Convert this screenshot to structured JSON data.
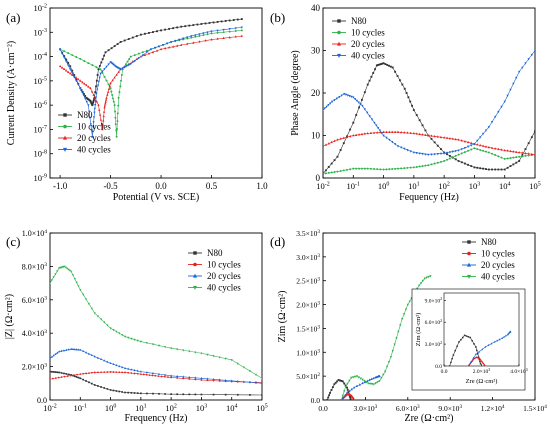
{
  "chart_data": [
    {
      "panel_label": "(a)",
      "type": "line",
      "xlabel": "Potential (V vs. SCE)",
      "ylabel": "Current Density (A·cm⁻²)",
      "xlim": [
        -1.1,
        1.0
      ],
      "ylim_exp": [
        -9,
        -2
      ],
      "yscale": "log",
      "xticks": [
        "-1.0",
        "-0.5",
        "0.0",
        "0.5",
        "1.0"
      ],
      "yticks": [
        {
          "base": "10",
          "exp": "-2"
        },
        {
          "base": "10",
          "exp": "-3"
        },
        {
          "base": "10",
          "exp": "-4"
        },
        {
          "base": "10",
          "exp": "-5"
        },
        {
          "base": "10",
          "exp": "-6"
        },
        {
          "base": "10",
          "exp": "-7"
        },
        {
          "base": "10",
          "exp": "-8"
        },
        {
          "base": "10",
          "exp": "-9"
        }
      ],
      "legend_position": "bottom-left",
      "series": [
        {
          "name": "N80",
          "color": "#333333",
          "x": [
            -1.0,
            -0.9,
            -0.8,
            -0.74,
            -0.7,
            -0.68,
            -0.66,
            -0.62,
            -0.55,
            -0.4,
            -0.2,
            0.0,
            0.2,
            0.4,
            0.6,
            0.8
          ],
          "y": [
            0.0002,
            4e-05,
            5e-06,
            2e-06,
            1.5e-06,
            1e-06,
            2e-06,
            3e-05,
            0.00015,
            0.0004,
            0.0008,
            0.0012,
            0.0017,
            0.0022,
            0.0028,
            0.0035
          ]
        },
        {
          "name": "10 cycles",
          "color": "#2db24a",
          "x": [
            -1.0,
            -0.8,
            -0.6,
            -0.5,
            -0.46,
            -0.44,
            -0.42,
            -0.38,
            -0.3,
            -0.1,
            0.1,
            0.3,
            0.5,
            0.8
          ],
          "y": [
            0.0002,
            8e-05,
            3e-05,
            5e-06,
            1e-06,
            5e-08,
            2e-06,
            3e-05,
            0.0001,
            0.0002,
            0.0004,
            0.0006,
            0.0009,
            0.0012
          ]
        },
        {
          "name": "20 cycles",
          "color": "#e8201c",
          "x": [
            -1.0,
            -0.9,
            -0.8,
            -0.7,
            -0.62,
            -0.58,
            -0.56,
            -0.54,
            -0.5,
            -0.4,
            -0.2,
            0.0,
            0.2,
            0.5,
            0.8
          ],
          "y": [
            4e-05,
            2e-05,
            1e-05,
            5e-06,
            1e-06,
            1e-07,
            8e-07,
            2e-06,
            8e-06,
            3e-05,
            0.0001,
            0.0002,
            0.0003,
            0.0005,
            0.0007
          ]
        },
        {
          "name": "40 cycles",
          "color": "#1a64d9",
          "x": [
            -1.0,
            -0.9,
            -0.8,
            -0.72,
            -0.68,
            -0.66,
            -0.64,
            -0.6,
            -0.5,
            -0.45,
            -0.4,
            -0.3,
            -0.1,
            0.1,
            0.3,
            0.5,
            0.8
          ],
          "y": [
            0.0002,
            3e-05,
            5e-06,
            1e-06,
            5e-08,
            5e-07,
            3e-06,
            2e-05,
            6e-05,
            4e-05,
            3e-05,
            5e-05,
            0.0002,
            0.0004,
            0.0007,
            0.0011,
            0.0016
          ]
        }
      ]
    },
    {
      "panel_label": "(b)",
      "type": "line",
      "xlabel": "Fequency (Hz)",
      "ylabel": "Phase Angle (degree)",
      "xscale": "log",
      "xlim_exp": [
        -2,
        5
      ],
      "ylim": [
        0,
        40
      ],
      "xticks": [
        {
          "base": "10",
          "exp": "-2"
        },
        {
          "base": "10",
          "exp": "-1"
        },
        {
          "base": "10",
          "exp": "0"
        },
        {
          "base": "10",
          "exp": "1"
        },
        {
          "base": "10",
          "exp": "2"
        },
        {
          "base": "10",
          "exp": "3"
        },
        {
          "base": "10",
          "exp": "4"
        },
        {
          "base": "10",
          "exp": "5"
        }
      ],
      "yticks": [
        "0",
        "10",
        "20",
        "30",
        "40"
      ],
      "legend_position": "top-left",
      "series": [
        {
          "name": "N80",
          "color": "#333333",
          "x": [
            0.01,
            0.03,
            0.1,
            0.3,
            0.6,
            1,
            2,
            5,
            10,
            30,
            100,
            300,
            1000,
            3000,
            10000,
            30000,
            100000
          ],
          "y": [
            1,
            5,
            13,
            22,
            26.5,
            27,
            26,
            21,
            16,
            10,
            6,
            4,
            2.5,
            2,
            2,
            4,
            11
          ]
        },
        {
          "name": "10 cycles",
          "color": "#2db24a",
          "x": [
            0.01,
            0.03,
            0.1,
            0.3,
            1,
            3,
            10,
            30,
            100,
            300,
            1000,
            3000,
            10000,
            30000,
            100000
          ],
          "y": [
            1,
            1.5,
            2.2,
            2.2,
            2,
            2.2,
            2.5,
            3,
            4,
            5.5,
            7,
            6,
            4.5,
            5,
            5.5
          ]
        },
        {
          "name": "20 cycles",
          "color": "#e8201c",
          "x": [
            0.01,
            0.03,
            0.1,
            0.3,
            1,
            3,
            10,
            30,
            100,
            300,
            1000,
            3000,
            10000,
            30000,
            100000
          ],
          "y": [
            7.5,
            9,
            10,
            10.5,
            10.8,
            10.8,
            10.5,
            10,
            9.5,
            9,
            8,
            7.2,
            6.5,
            6,
            5.5
          ]
        },
        {
          "name": "40 cycles",
          "color": "#1a64d9",
          "x": [
            0.01,
            0.02,
            0.05,
            0.1,
            0.2,
            0.5,
            1,
            3,
            10,
            30,
            100,
            300,
            1000,
            3000,
            10000,
            30000,
            100000
          ],
          "y": [
            16,
            18,
            19.8,
            19,
            17,
            13,
            10,
            7.5,
            6,
            5.5,
            5.8,
            6.5,
            8,
            12,
            18,
            25,
            30
          ]
        }
      ]
    },
    {
      "panel_label": "(c)",
      "type": "line",
      "xlabel": "Frequency (Hz)",
      "ylabel": "|Z| (Ω·cm²)",
      "xscale": "log",
      "xlim_exp": [
        -2,
        5
      ],
      "ylim": [
        0,
        10000
      ],
      "xticks": [
        {
          "base": "10",
          "exp": "-2"
        },
        {
          "base": "10",
          "exp": "-1"
        },
        {
          "base": "10",
          "exp": "0"
        },
        {
          "base": "10",
          "exp": "1"
        },
        {
          "base": "10",
          "exp": "2"
        },
        {
          "base": "10",
          "exp": "3"
        },
        {
          "base": "10",
          "exp": "4"
        },
        {
          "base": "10",
          "exp": "5"
        }
      ],
      "yticks": [
        {
          "m": "0.0",
          "exp": "0"
        },
        {
          "m": "2.0",
          "exp": "3"
        },
        {
          "m": "4.0",
          "exp": "3"
        },
        {
          "m": "6.0",
          "exp": "3"
        },
        {
          "m": "8.0",
          "exp": "3"
        },
        {
          "m": "1.0",
          "exp": "4"
        }
      ],
      "legend_position": "top-right",
      "series": [
        {
          "name": "N80",
          "color": "#333333",
          "x": [
            0.01,
            0.02,
            0.05,
            0.1,
            0.3,
            1,
            3,
            10,
            100,
            1000,
            100000
          ],
          "y": [
            1700,
            1650,
            1500,
            1300,
            900,
            600,
            450,
            400,
            350,
            330,
            300
          ]
        },
        {
          "name": "10 cycles",
          "color": "#e8201c",
          "x": [
            0.01,
            0.03,
            0.1,
            0.3,
            1,
            3,
            10,
            30,
            100,
            1000,
            10000,
            100000
          ],
          "y": [
            1250,
            1400,
            1550,
            1650,
            1680,
            1650,
            1550,
            1450,
            1350,
            1200,
            1100,
            1050
          ]
        },
        {
          "name": "20 cycles",
          "color": "#1a64d9",
          "x": [
            0.01,
            0.02,
            0.05,
            0.1,
            0.3,
            1,
            3,
            10,
            100,
            1000,
            10000,
            100000
          ],
          "y": [
            2500,
            2900,
            3050,
            3000,
            2600,
            2200,
            1900,
            1700,
            1450,
            1300,
            1150,
            1000
          ]
        },
        {
          "name": "40 cycles",
          "color": "#2db24a",
          "x": [
            0.01,
            0.02,
            0.03,
            0.05,
            0.1,
            0.3,
            1,
            3,
            10,
            100,
            1000,
            10000,
            100000
          ],
          "y": [
            7000,
            7900,
            8000,
            7700,
            6600,
            5200,
            4300,
            3800,
            3500,
            3100,
            2800,
            2400,
            1300
          ]
        }
      ]
    },
    {
      "panel_label": "(d)",
      "type": "scatter",
      "xlabel": "Zre (Ω·cm²)",
      "ylabel": "Zim (Ω·cm²)",
      "xlim": [
        0,
        15000
      ],
      "ylim": [
        0,
        3500
      ],
      "xticks": [
        {
          "m": "0.0",
          "exp": "0"
        },
        {
          "m": "3.0",
          "exp": "3"
        },
        {
          "m": "6.0",
          "exp": "3"
        },
        {
          "m": "9.0",
          "exp": "3"
        },
        {
          "m": "1.2",
          "exp": "4"
        },
        {
          "m": "1.5",
          "exp": "4"
        }
      ],
      "yticks": [
        {
          "m": "0.0",
          "exp": "0"
        },
        {
          "m": "5.0",
          "exp": "2"
        },
        {
          "m": "1.0",
          "exp": "3"
        },
        {
          "m": "1.5",
          "exp": "3"
        },
        {
          "m": "2.0",
          "exp": "3"
        },
        {
          "m": "2.5",
          "exp": "3"
        },
        {
          "m": "3.0",
          "exp": "3"
        },
        {
          "m": "3.5",
          "exp": "3"
        }
      ],
      "legend_position": "top-right",
      "series": [
        {
          "name": "N80",
          "color": "#333333",
          "x": [
            300,
            500,
            800,
            1100,
            1400,
            1700,
            1850,
            1950
          ],
          "y": [
            0,
            150,
            330,
            420,
            390,
            260,
            120,
            30
          ]
        },
        {
          "name": "10 cycles",
          "color": "#e8201c",
          "x": [
            1300,
            1500,
            1700,
            1850,
            2000,
            2150
          ],
          "y": [
            0,
            60,
            110,
            120,
            90,
            30
          ]
        },
        {
          "name": "20 cycles",
          "color": "#1a64d9",
          "x": [
            1300,
            1700,
            2200,
            2800,
            3300,
            3700,
            3900,
            4000
          ],
          "y": [
            0,
            150,
            260,
            350,
            420,
            470,
            490,
            500
          ]
        },
        {
          "name": "40 cycles",
          "color": "#2db24a",
          "x": [
            1300,
            1600,
            2000,
            2400,
            2800,
            3200,
            3600,
            4000,
            4400,
            4800,
            5200,
            5600,
            6000,
            6400,
            6800,
            7200,
            7600
          ],
          "y": [
            0,
            280,
            470,
            500,
            430,
            350,
            330,
            400,
            600,
            900,
            1300,
            1700,
            2000,
            2200,
            2400,
            2550,
            2600
          ]
        }
      ],
      "inset": {
        "xlim": [
          0,
          4000
        ],
        "ylim": [
          0,
          1000
        ],
        "xlabel": "Zre (Ω·cm²)",
        "ylabel": "Zim (Ω·cm²)",
        "xticks": [
          {
            "m": "0.0",
            "exp": "0"
          },
          {
            "m": "2.0",
            "exp": "3"
          },
          {
            "m": "4.0",
            "exp": "3"
          }
        ],
        "yticks": [
          {
            "m": "0.0",
            "exp": "0"
          },
          {
            "m": "3.0",
            "exp": "2"
          },
          {
            "m": "6.0",
            "exp": "2"
          },
          {
            "m": "9.0",
            "exp": "2"
          }
        ],
        "series": [
          {
            "name": "N80",
            "color": "#333333",
            "x": [
              300,
              500,
              800,
              1100,
              1400,
              1700,
              1850,
              1950
            ],
            "y": [
              0,
              150,
              330,
              420,
              390,
              260,
              120,
              30
            ]
          },
          {
            "name": "10 cycles",
            "color": "#e8201c",
            "x": [
              1300,
              1450,
              1600,
              1750,
              1900,
              2050,
              2200
            ],
            "y": [
              0,
              50,
              100,
              120,
              100,
              50,
              0
            ]
          },
          {
            "name": "20 cycles",
            "color": "#1a64d9",
            "x": [
              1300,
              1700,
              2200,
              2700,
              3100,
              3400,
              3500,
              3550
            ],
            "y": [
              0,
              160,
              260,
              330,
              380,
              430,
              460,
              470
            ]
          }
        ]
      }
    }
  ]
}
